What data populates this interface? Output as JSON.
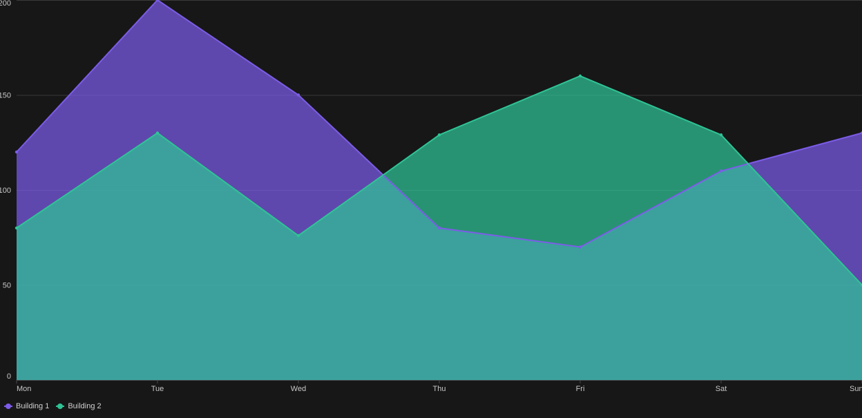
{
  "chart_data": {
    "type": "area",
    "title": "",
    "xlabel": "",
    "ylabel": "",
    "categories": [
      "Mon",
      "Tue",
      "Wed",
      "Thu",
      "Fri",
      "Sat",
      "Sun"
    ],
    "ylim": [
      0,
      200
    ],
    "yticks": [
      0,
      50,
      100,
      150,
      200
    ],
    "grid": true,
    "legend_position": "bottom-left",
    "series": [
      {
        "name": "Building 1",
        "color": "#7c5ce8",
        "values": [
          120,
          200,
          150,
          80,
          70,
          110,
          130
        ]
      },
      {
        "name": "Building 2",
        "color": "#2fc496",
        "values": [
          80,
          130,
          76,
          129,
          160,
          129,
          50
        ]
      }
    ]
  }
}
